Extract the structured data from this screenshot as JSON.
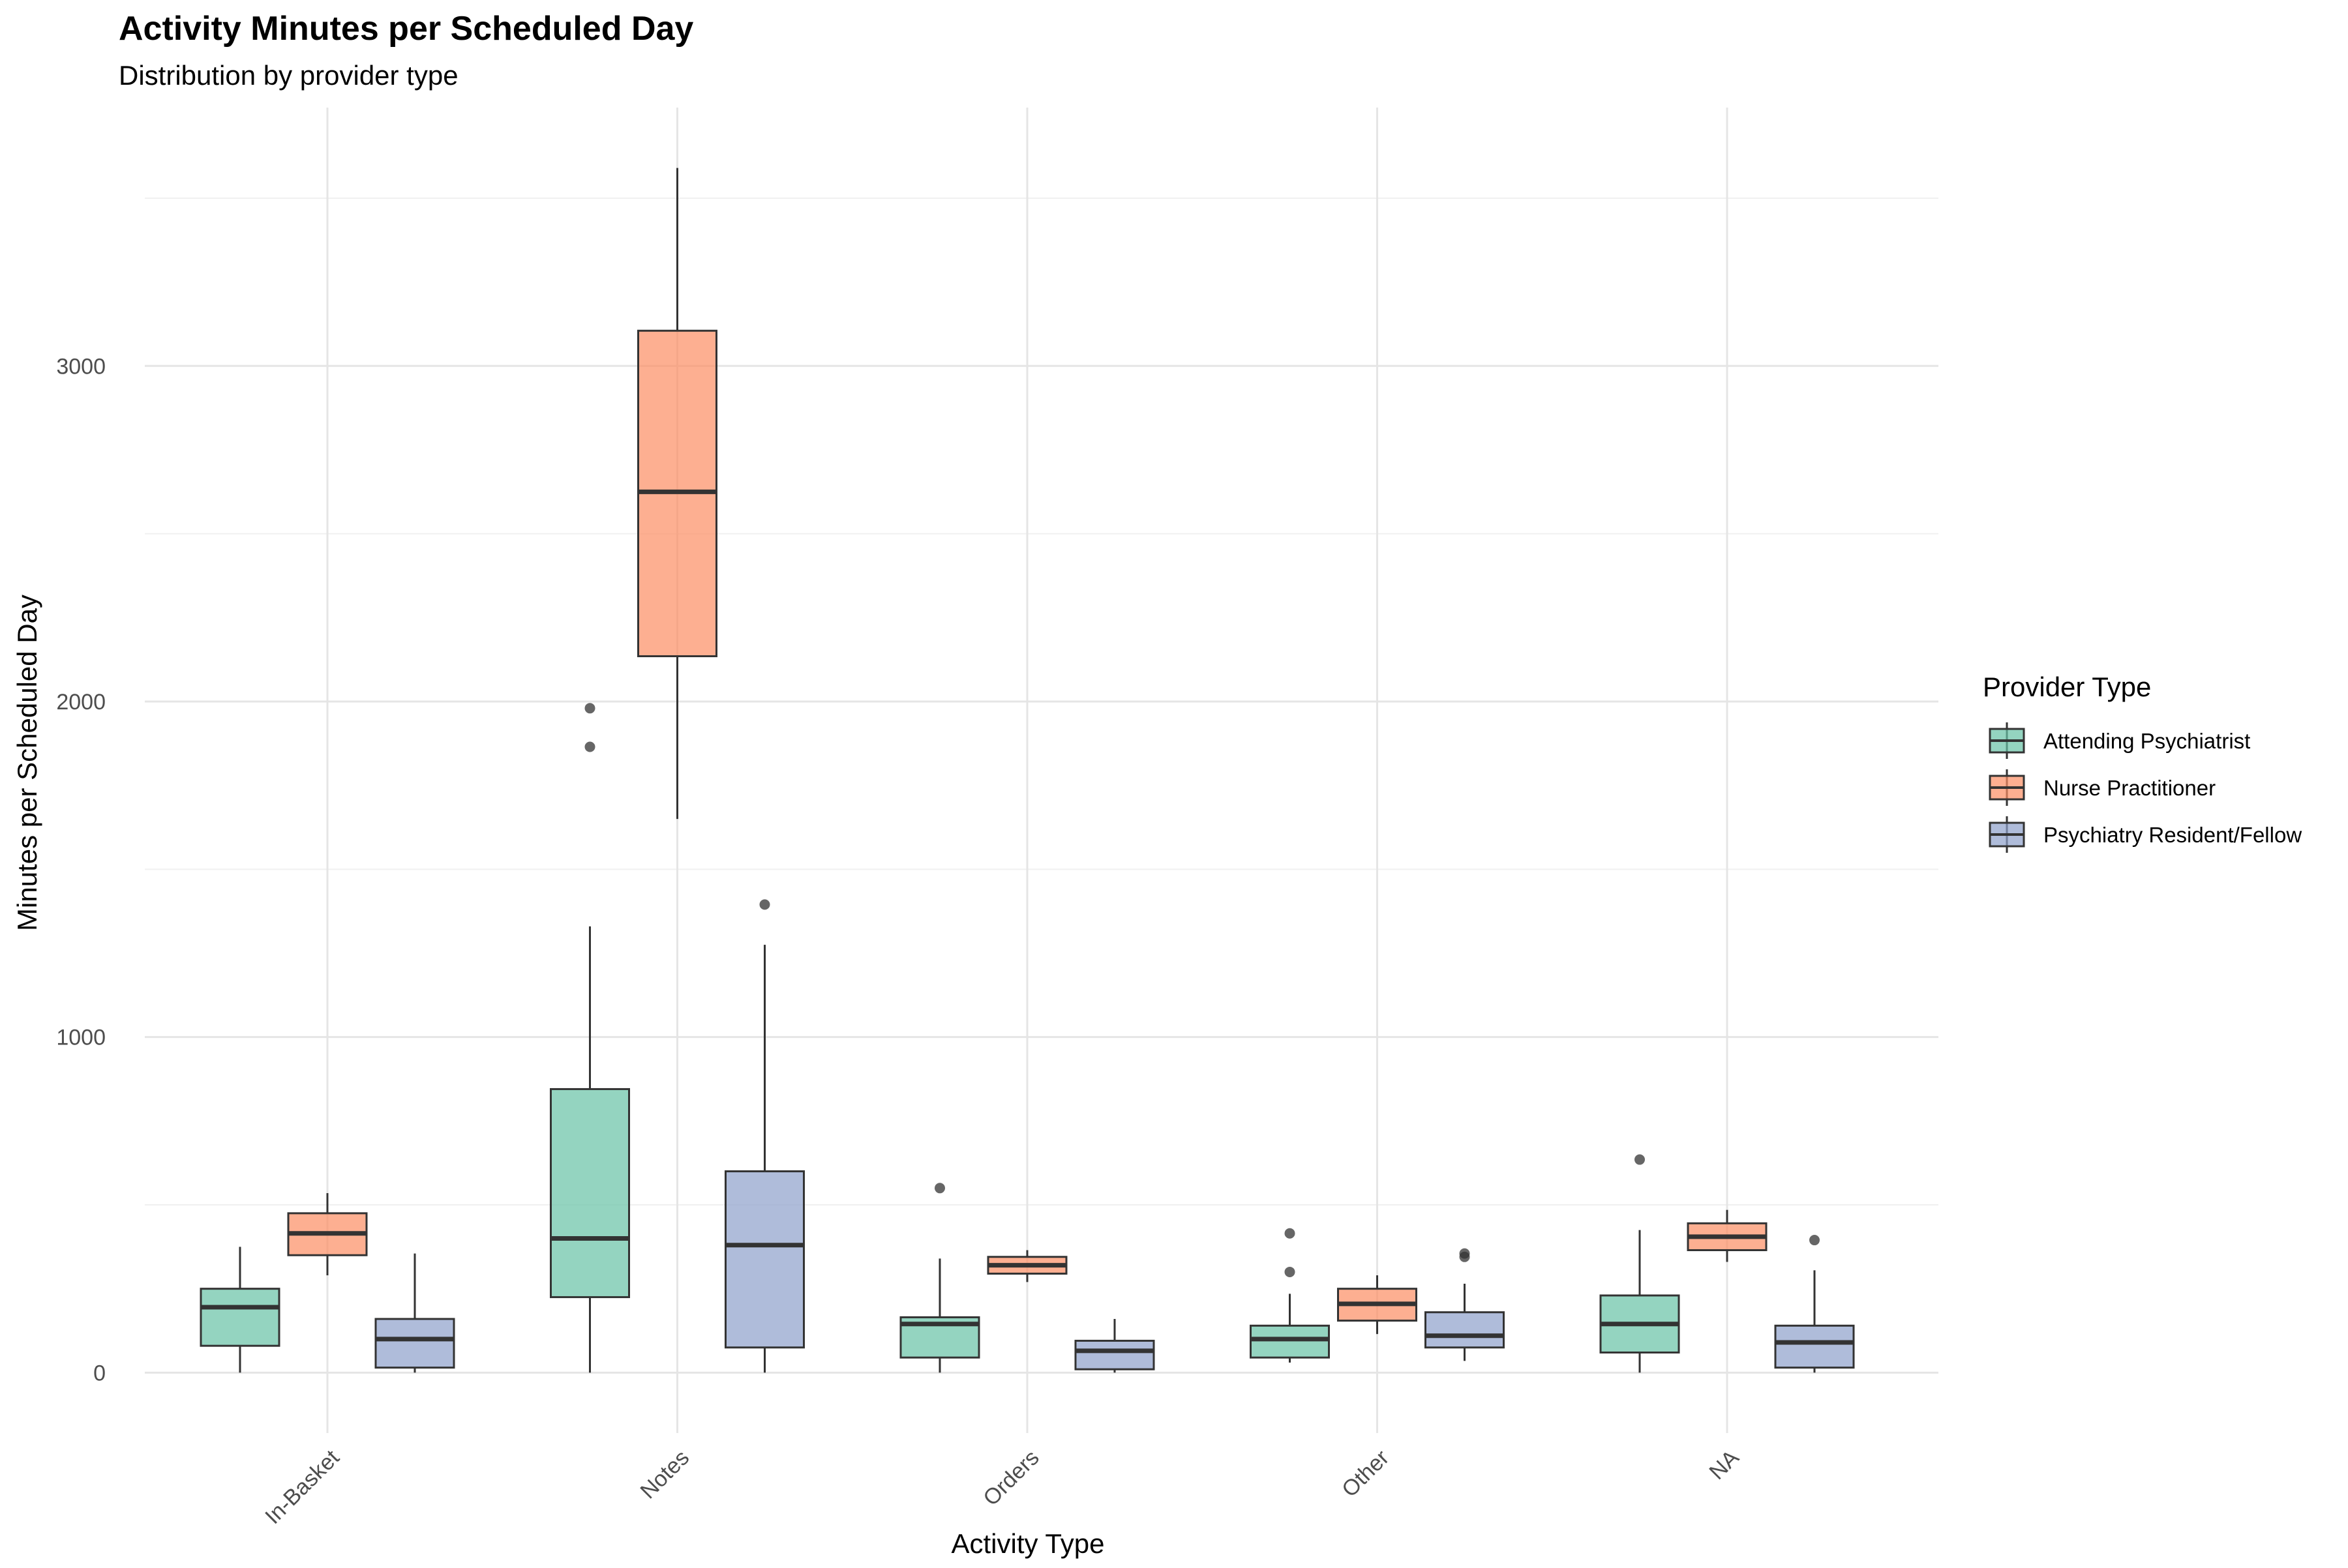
{
  "chart_data": {
    "type": "boxplot",
    "title": "Activity Minutes per Scheduled Day",
    "subtitle": "Distribution by provider type",
    "xlabel": "Activity Type",
    "ylabel": "Minutes per Scheduled Day",
    "categories": [
      "In-Basket",
      "Notes",
      "Orders",
      "Other",
      "NA"
    ],
    "ylim": [
      -180,
      3770
    ],
    "yticks": [
      0,
      1000,
      2000,
      3000
    ],
    "grid": true,
    "legend": {
      "title": "Provider Type",
      "position": "right"
    },
    "series": [
      {
        "name": "Attending Psychiatrist",
        "color": "#66c2a5",
        "boxes": [
          {
            "min": 0,
            "q1": 80,
            "median": 195,
            "q3": 250,
            "max": 375,
            "outliers": []
          },
          {
            "min": 0,
            "q1": 225,
            "median": 400,
            "q3": 845,
            "max": 1330,
            "outliers": [
              1865,
              1980
            ]
          },
          {
            "min": 0,
            "q1": 45,
            "median": 145,
            "q3": 165,
            "max": 340,
            "outliers": [
              550
            ]
          },
          {
            "min": 30,
            "q1": 45,
            "median": 100,
            "q3": 140,
            "max": 235,
            "outliers": [
              300,
              415
            ]
          },
          {
            "min": 0,
            "q1": 60,
            "median": 145,
            "q3": 230,
            "max": 425,
            "outliers": [
              635
            ]
          }
        ]
      },
      {
        "name": "Nurse Practitioner",
        "color": "#fc8d62",
        "boxes": [
          {
            "min": 290,
            "q1": 350,
            "median": 415,
            "q3": 475,
            "max": 535,
            "outliers": []
          },
          {
            "min": 1650,
            "q1": 2135,
            "median": 2625,
            "q3": 3105,
            "max": 3590,
            "outliers": []
          },
          {
            "min": 270,
            "q1": 295,
            "median": 320,
            "q3": 345,
            "max": 365,
            "outliers": []
          },
          {
            "min": 115,
            "q1": 155,
            "median": 205,
            "q3": 250,
            "max": 290,
            "outliers": []
          },
          {
            "min": 330,
            "q1": 365,
            "median": 405,
            "q3": 445,
            "max": 485,
            "outliers": []
          }
        ]
      },
      {
        "name": "Psychiatry Resident/Fellow",
        "color": "#8da0cb",
        "boxes": [
          {
            "min": 0,
            "q1": 15,
            "median": 100,
            "q3": 160,
            "max": 355,
            "outliers": []
          },
          {
            "min": 0,
            "q1": 75,
            "median": 380,
            "q3": 600,
            "max": 1275,
            "outliers": [
              1395
            ]
          },
          {
            "min": 0,
            "q1": 10,
            "median": 65,
            "q3": 95,
            "max": 160,
            "outliers": []
          },
          {
            "min": 35,
            "q1": 75,
            "median": 110,
            "q3": 180,
            "max": 265,
            "outliers": [
              345,
              355
            ]
          },
          {
            "min": 0,
            "q1": 15,
            "median": 90,
            "q3": 140,
            "max": 305,
            "outliers": [
              395
            ]
          }
        ]
      }
    ]
  }
}
